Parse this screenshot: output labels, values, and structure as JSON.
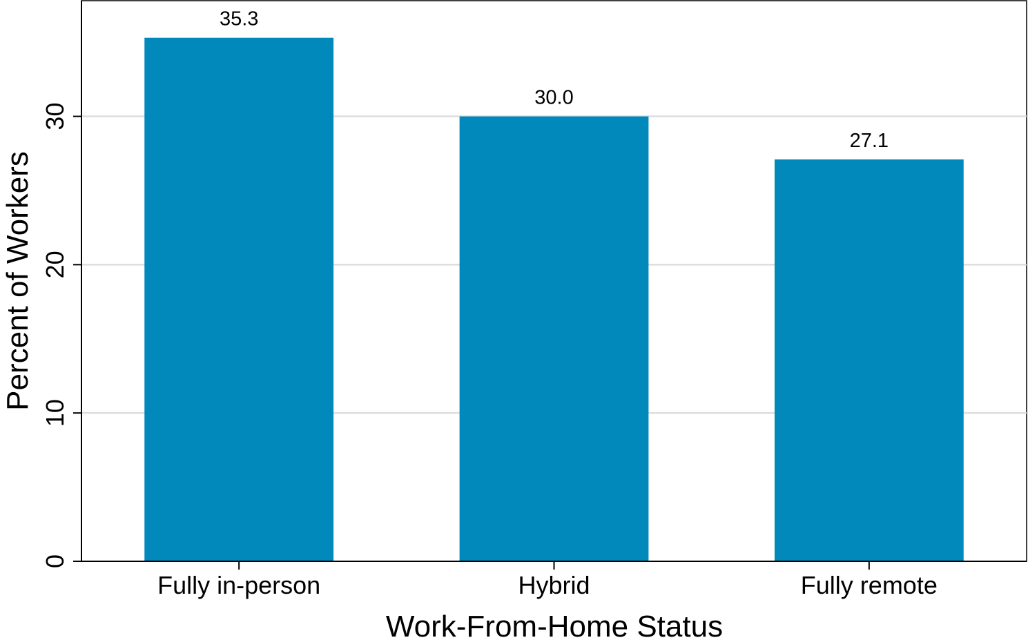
{
  "chart_data": {
    "type": "bar",
    "title": "",
    "xlabel": "Work-From-Home Status",
    "ylabel": "Percent of Workers",
    "categories": [
      "Fully in-person",
      "Hybrid",
      "Fully remote"
    ],
    "values": [
      35.3,
      30.0,
      27.1
    ],
    "value_labels": [
      "35.3",
      "30.0",
      "27.1"
    ],
    "yticks": [
      0,
      10,
      20,
      30
    ],
    "ytick_labels": [
      "0",
      "10",
      "20",
      "30"
    ],
    "ylim": [
      0,
      37.8
    ],
    "grid": true,
    "legend": "none",
    "colors": {
      "bar": "#0289bc",
      "grid": "#dddddd",
      "axis": "#000000"
    }
  }
}
